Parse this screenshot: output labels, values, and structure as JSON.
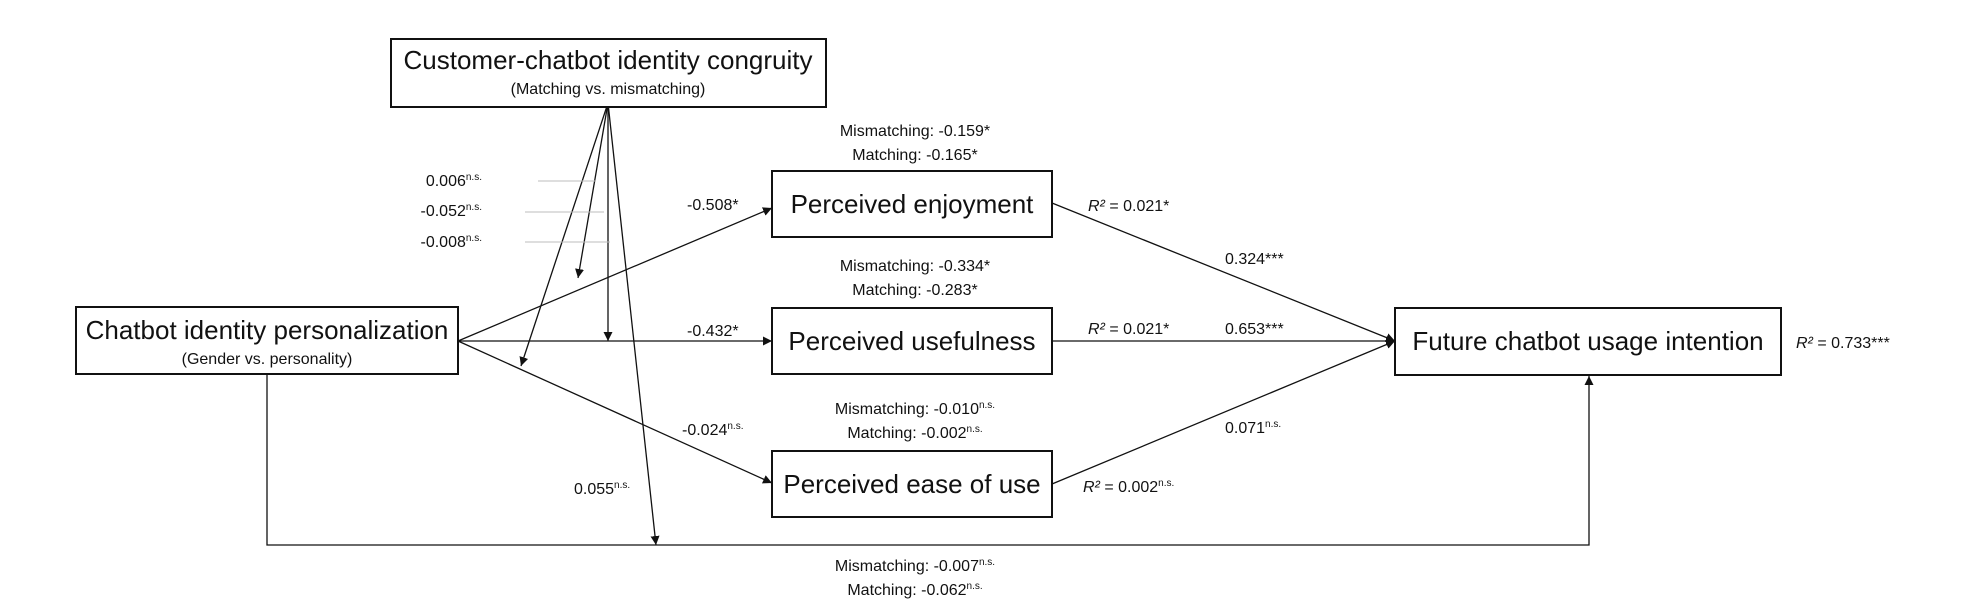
{
  "nodes": {
    "congruity": {
      "title": "Customer-chatbot identity congruity",
      "subtitle": "(Matching vs. mismatching)"
    },
    "personalization": {
      "title": "Chatbot identity personalization",
      "subtitle": "(Gender vs. personality)"
    },
    "enjoyment": {
      "title": "Perceived enjoyment"
    },
    "usefulness": {
      "title": "Perceived usefulness"
    },
    "ease": {
      "title": "Perceived ease of use"
    },
    "intention": {
      "title": "Future chatbot usage intention"
    }
  },
  "moderation_coefficients": {
    "enjoyment": {
      "value": "0.006",
      "sig": "n.s."
    },
    "usefulness": {
      "value": "-0.052",
      "sig": "n.s."
    },
    "ease": {
      "value": "-0.008",
      "sig": "n.s."
    },
    "direct": {
      "value": "0.055",
      "sig": "n.s."
    }
  },
  "paths": {
    "pers_enjoyment": {
      "value": "-0.508",
      "sig": "*"
    },
    "pers_usefulness": {
      "value": "-0.432",
      "sig": "*"
    },
    "pers_ease": {
      "value": "-0.024",
      "sig": "n.s."
    },
    "enjoyment_intention": {
      "value": "0.324",
      "sig": "***"
    },
    "usefulness_intention": {
      "value": "0.653",
      "sig": "***"
    },
    "ease_intention": {
      "value": "0.071",
      "sig": "n.s."
    }
  },
  "r_squared": {
    "label": "R²",
    "enjoyment": {
      "value": " = 0.021",
      "sig": "*"
    },
    "usefulness": {
      "value": " = 0.021",
      "sig": "*"
    },
    "ease": {
      "value": " = 0.002",
      "sig": "n.s."
    },
    "intention": {
      "value": " = 0.733",
      "sig": "***"
    }
  },
  "conditional_effects": {
    "enjoyment": {
      "mismatching": "Mismatching: -0.159*",
      "matching": "Matching: -0.165*"
    },
    "usefulness": {
      "mismatching": "Mismatching: -0.334*",
      "matching": "Matching: -0.283*"
    },
    "ease": {
      "mismatching": "Mismatching: -0.010",
      "mismatching_sig": "n.s.",
      "matching": "Matching: -0.002",
      "matching_sig": "n.s."
    },
    "direct": {
      "mismatching": "Mismatching: -0.007",
      "mismatching_sig": "n.s.",
      "matching": "Matching: -0.062",
      "matching_sig": "n.s."
    }
  }
}
